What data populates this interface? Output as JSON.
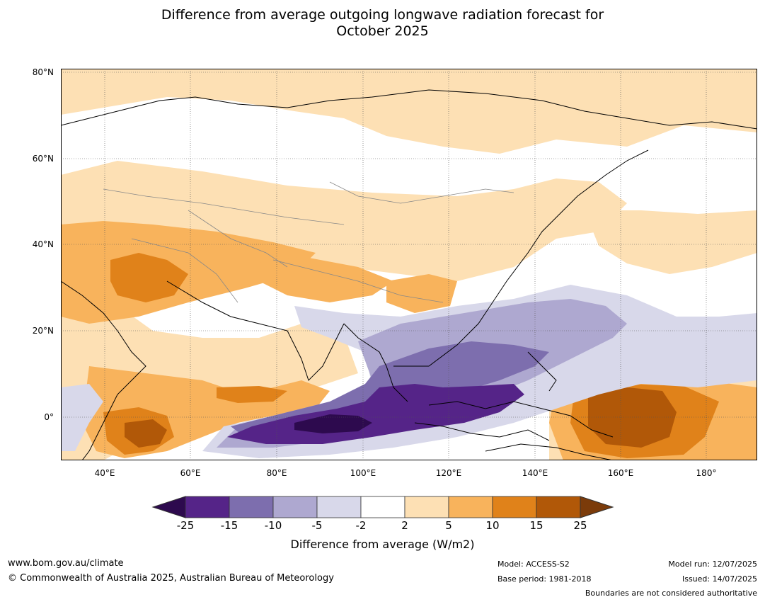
{
  "title_line1": "Difference from average outgoing longwave radiation forecast for",
  "title_line2": "October 2025",
  "lat_labels": [
    "80°N",
    "60°N",
    "40°N",
    "20°N",
    "0°"
  ],
  "lon_labels": [
    "40°E",
    "60°E",
    "80°E",
    "100°E",
    "120°E",
    "140°E",
    "160°E",
    "180°"
  ],
  "colorbar": {
    "ticks": [
      "-25",
      "-15",
      "-10",
      "-5",
      "-2",
      "2",
      "5",
      "10",
      "15",
      "25"
    ],
    "colors": [
      "#2d0a4e",
      "#552488",
      "#7d6eae",
      "#aea8d0",
      "#d8d8ea",
      "#ffffff",
      "#fde0b4",
      "#f8b35c",
      "#e0821a",
      "#b15808",
      "#7b3b0a"
    ],
    "label": "Difference from average (W/m2)"
  },
  "footer": {
    "url": "www.bom.gov.au/climate",
    "copyright": "© Commonwealth of Australia 2025, Australian Bureau of Meteorology",
    "model": "Model: ACCESS-S2",
    "base_period": "Base period: 1981-2018",
    "model_run": "Model run: 12/07/2025",
    "issued": "Issued: 14/07/2025",
    "boundaries": "Boundaries are not considered authoritative"
  }
}
